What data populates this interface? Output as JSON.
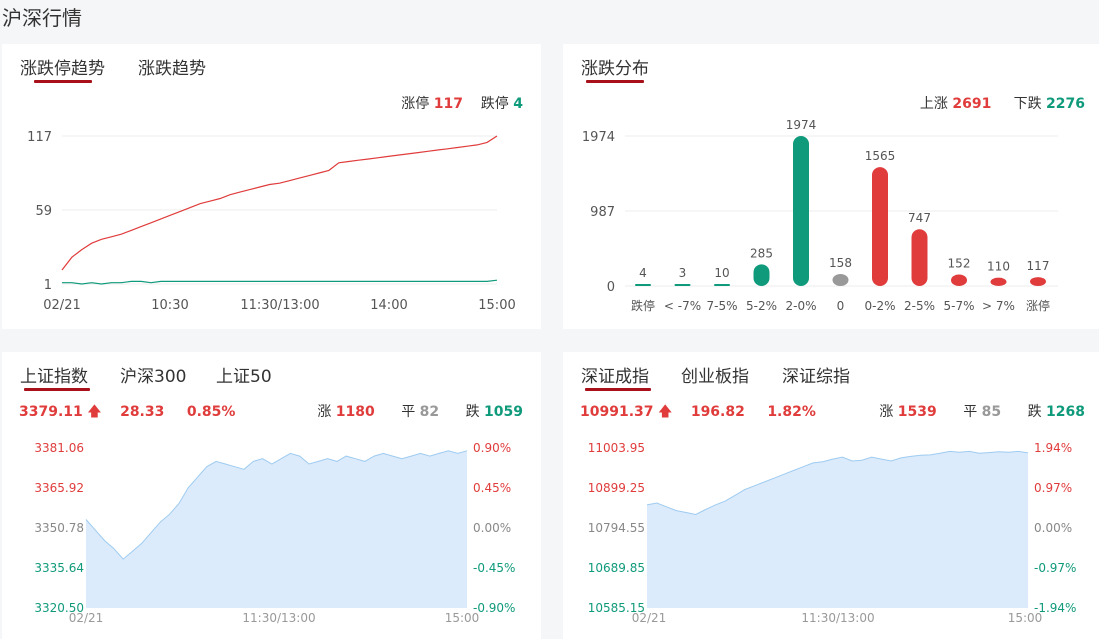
{
  "page_title": "沪深行情",
  "colors": {
    "red": "#e03c3c",
    "green": "#109a7c",
    "grey": "#999999",
    "accent": "#a8101a",
    "area": "#dcebfb",
    "area_line": "#9ecbf0"
  },
  "limit_panel": {
    "tabs": [
      "涨跌停趋势",
      "涨跌趋势"
    ],
    "stats": {
      "up_label": "涨停",
      "up_value": "117",
      "down_label": "跌停",
      "down_value": "4"
    },
    "chart_data": {
      "type": "line",
      "yticks": [
        "117",
        "59",
        "1"
      ],
      "ylim": [
        1,
        117
      ],
      "xticks": [
        "02/21",
        "10:30",
        "11:30/13:00",
        "14:00",
        "15:00"
      ],
      "series": [
        {
          "name": "涨停",
          "values": [
            12,
            22,
            28,
            33,
            36,
            38,
            40,
            43,
            46,
            49,
            52,
            55,
            58,
            61,
            64,
            66,
            68,
            71,
            73,
            75,
            77,
            79,
            80,
            82,
            84,
            86,
            88,
            90,
            96,
            97,
            98,
            99,
            100,
            101,
            102,
            103,
            104,
            105,
            106,
            107,
            108,
            109,
            110,
            112,
            117
          ]
        },
        {
          "name": "跌停",
          "values": [
            2,
            2,
            1,
            2,
            1,
            2,
            2,
            3,
            3,
            2,
            3,
            3,
            3,
            3,
            3,
            3,
            3,
            3,
            3,
            3,
            3,
            3,
            3,
            3,
            3,
            3,
            3,
            3,
            3,
            3,
            3,
            3,
            3,
            3,
            3,
            3,
            3,
            3,
            3,
            3,
            3,
            3,
            3,
            3,
            4
          ]
        }
      ]
    }
  },
  "dist_panel": {
    "tabs": [
      "涨跌分布"
    ],
    "stats": {
      "up_label": "上涨",
      "up_value": "2691",
      "down_label": "下跌",
      "down_value": "2276"
    },
    "chart_data": {
      "type": "bar",
      "yticks": [
        "1974",
        "987",
        "0"
      ],
      "ylim": [
        0,
        1974
      ],
      "categories": [
        "跌停",
        "< -7%",
        "7-5%",
        "5-2%",
        "2-0%",
        "0",
        "0-2%",
        "2-5%",
        "5-7%",
        "> 7%",
        "涨停"
      ],
      "values": [
        4,
        3,
        10,
        285,
        1974,
        158,
        1565,
        747,
        152,
        110,
        117
      ],
      "labels": [
        "4",
        "3",
        "10",
        "285",
        "1974",
        "158",
        "1565",
        "747",
        "152",
        "110",
        "117"
      ],
      "bar_colors": [
        "green",
        "green",
        "green",
        "green",
        "green",
        "grey",
        "red",
        "red",
        "red",
        "red",
        "red"
      ]
    }
  },
  "sh_panel": {
    "tabs": [
      "上证指数",
      "沪深300",
      "上证50"
    ],
    "price": "3379.11",
    "change": "28.33",
    "pct": "0.85%",
    "up_label": "涨",
    "up_value": "1180",
    "flat_label": "平",
    "flat_value": "82",
    "down_label": "跌",
    "down_value": "1059",
    "chart_data": {
      "type": "area",
      "left_ticks": [
        "3381.06",
        "3365.92",
        "3350.78",
        "3335.64",
        "3320.50"
      ],
      "right_ticks": [
        "0.90%",
        "0.45%",
        "0.00%",
        "-0.45%",
        "-0.90%"
      ],
      "xticks": [
        "02/21",
        "11:30/13:00",
        "15:00"
      ],
      "ylim": [
        3320.5,
        3381.06
      ],
      "values": [
        3354,
        3350,
        3346,
        3343,
        3339,
        3342,
        3345,
        3349,
        3353,
        3356,
        3360,
        3366,
        3370,
        3374,
        3376,
        3375,
        3374,
        3373,
        3376,
        3377,
        3375,
        3377,
        3379,
        3378,
        3375,
        3376,
        3377,
        3376,
        3378,
        3377,
        3376,
        3378,
        3379,
        3378,
        3377,
        3378,
        3379,
        3378,
        3379,
        3380,
        3379,
        3380
      ]
    }
  },
  "sz_panel": {
    "tabs": [
      "深证成指",
      "创业板指",
      "深证综指"
    ],
    "price": "10991.37",
    "change": "196.82",
    "pct": "1.82%",
    "up_label": "涨",
    "up_value": "1539",
    "flat_label": "平",
    "flat_value": "85",
    "down_label": "跌",
    "down_value": "1268",
    "chart_data": {
      "type": "area",
      "left_ticks": [
        "11003.95",
        "10899.25",
        "10794.55",
        "10689.85",
        "10585.15"
      ],
      "right_ticks": [
        "1.94%",
        "0.97%",
        "0.00%",
        "-0.97%",
        "-1.94%"
      ],
      "xticks": [
        "02/21",
        "11:30/13:00",
        "15:00"
      ],
      "ylim": [
        10585.15,
        11003.95
      ],
      "values": [
        10855,
        10860,
        10850,
        10840,
        10835,
        10830,
        10843,
        10855,
        10865,
        10880,
        10895,
        10905,
        10915,
        10925,
        10935,
        10945,
        10955,
        10965,
        10968,
        10975,
        10980,
        10970,
        10972,
        10980,
        10975,
        10970,
        10978,
        10982,
        10985,
        10986,
        10990,
        10995,
        10993,
        10995,
        10990,
        10992,
        10994,
        10993,
        10995,
        10991
      ]
    }
  }
}
